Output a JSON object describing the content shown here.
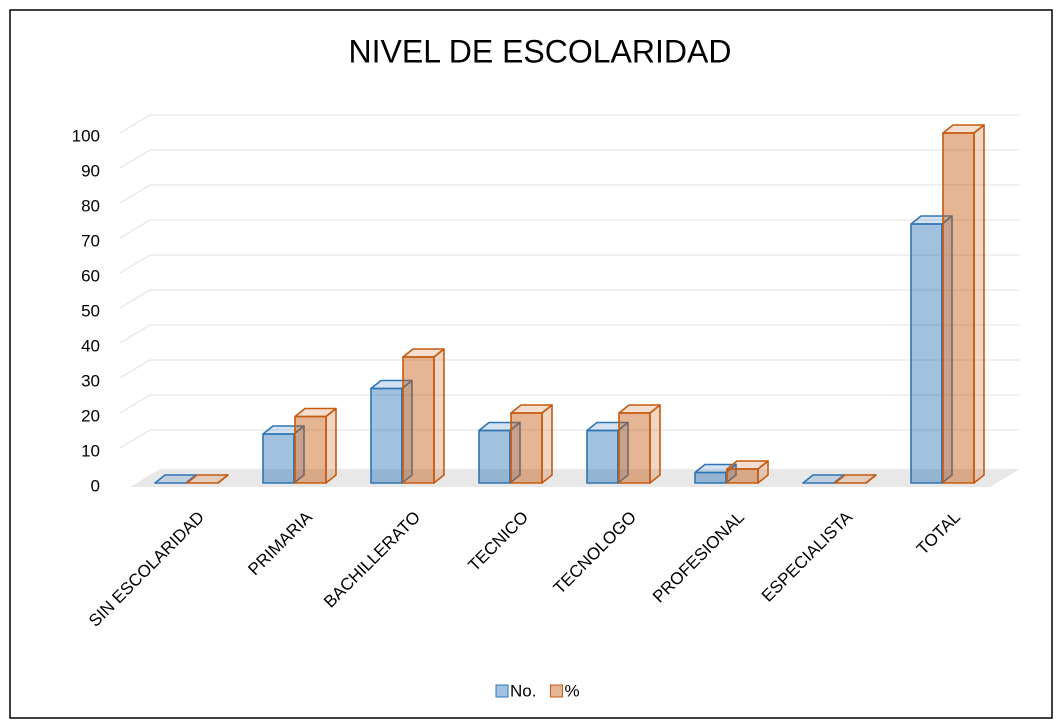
{
  "chart_data": {
    "type": "bar",
    "title": "NIVEL DE ESCOLARIDAD",
    "categories": [
      "SIN ESCOLARIDAD",
      "PRIMARIA",
      "BACHILLERATO",
      "TECNICO",
      "TECNOLOGO",
      "PROFESIONAL",
      "ESPECIALISTA",
      "TOTAL"
    ],
    "series": [
      {
        "name": "No.",
        "color": "#2e75b6",
        "values": [
          0,
          14,
          27,
          15,
          15,
          3,
          0,
          74
        ]
      },
      {
        "name": "%",
        "color": "#c55a11",
        "values": [
          0,
          19,
          36,
          20,
          20,
          4,
          0,
          100
        ]
      }
    ],
    "ylim": [
      0,
      100
    ],
    "yticks": [
      0,
      10,
      20,
      30,
      40,
      50,
      60,
      70,
      80,
      90,
      100
    ],
    "grid": true,
    "legend": "bottom"
  }
}
